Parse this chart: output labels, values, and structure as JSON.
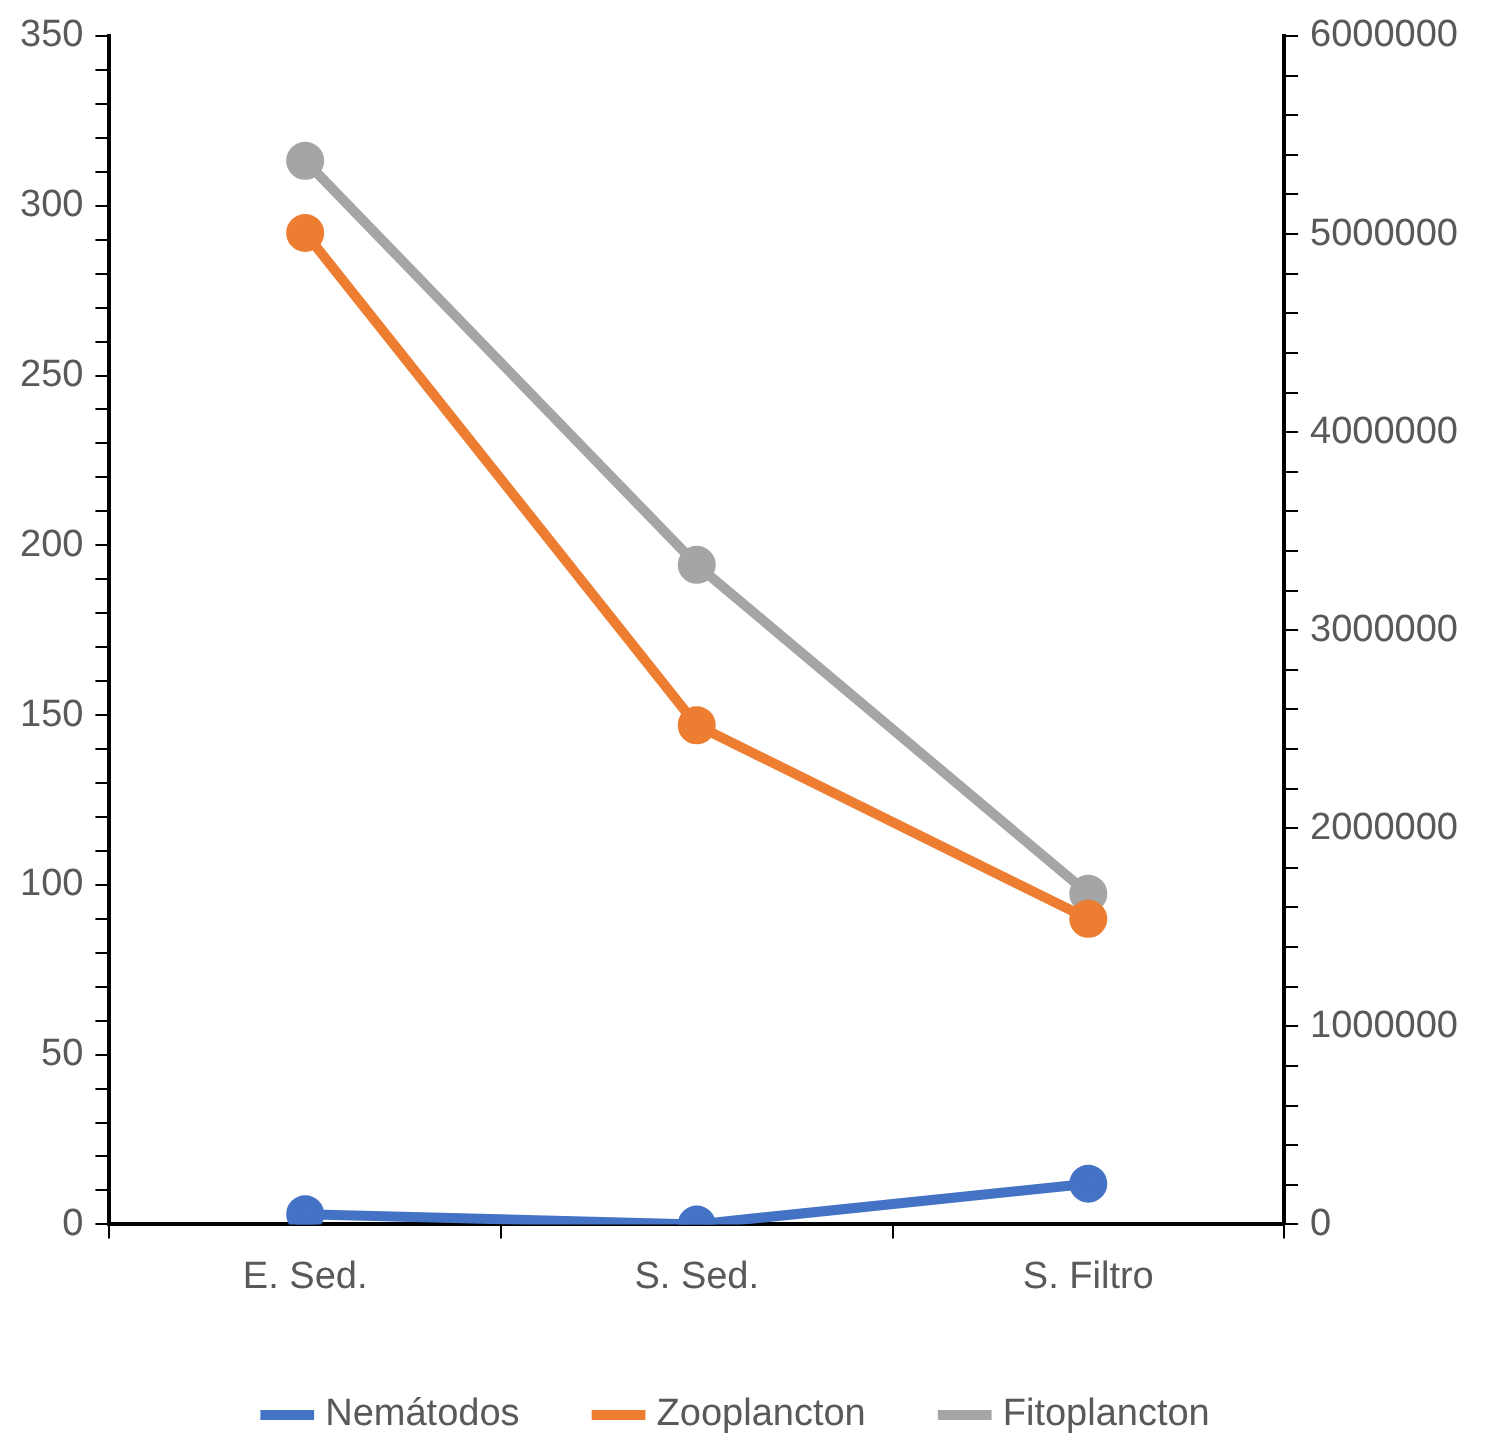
{
  "chart_data": {
    "type": "line",
    "categories": [
      "E. Sed.",
      "S. Sed.",
      "S. Filtro"
    ],
    "series": [
      {
        "name": "Nemátodos",
        "color": "#4472c4",
        "values": [
          3,
          0,
          12
        ]
      },
      {
        "name": "Zooplancton",
        "color": "#ed7d31",
        "values": [
          292,
          147,
          90
        ]
      },
      {
        "name": "Fitoplancton",
        "color": "#a5a5a5",
        "axis": "y2",
        "values": [
          5370000,
          3330000,
          1670000
        ]
      }
    ],
    "ylim": [
      0,
      350
    ],
    "yticks": [
      0,
      {
        "value": 10,
        "label": null
      },
      {
        "value": 20,
        "label": null
      },
      {
        "value": 30,
        "label": null
      },
      {
        "value": 40,
        "label": null
      },
      50,
      {
        "value": 60,
        "label": null
      },
      {
        "value": 70,
        "label": null
      },
      {
        "value": 80,
        "label": null
      },
      {
        "value": 90,
        "label": null
      },
      100,
      {
        "value": 110,
        "label": null
      },
      {
        "value": 120,
        "label": null
      },
      {
        "value": 130,
        "label": null
      },
      {
        "value": 140,
        "label": null
      },
      150,
      {
        "value": 160,
        "label": null
      },
      {
        "value": 170,
        "label": null
      },
      {
        "value": 180,
        "label": null
      },
      {
        "value": 190,
        "label": null
      },
      200,
      {
        "value": 210,
        "label": null
      },
      {
        "value": 220,
        "label": null
      },
      {
        "value": 230,
        "label": null
      },
      {
        "value": 240,
        "label": null
      },
      250,
      {
        "value": 260,
        "label": null
      },
      {
        "value": 270,
        "label": null
      },
      {
        "value": 280,
        "label": null
      },
      {
        "value": 290,
        "label": null
      },
      300,
      {
        "value": 310,
        "label": null
      },
      {
        "value": 320,
        "label": null
      },
      {
        "value": 330,
        "label": null
      },
      {
        "value": 340,
        "label": null
      },
      350
    ],
    "y2lim": [
      0,
      6000000
    ],
    "y2ticks": [
      0,
      {
        "value": 200000,
        "label": null
      },
      {
        "value": 400000,
        "label": null
      },
      {
        "value": 600000,
        "label": null
      },
      {
        "value": 800000,
        "label": null
      },
      1000000,
      {
        "value": 1200000,
        "label": null
      },
      {
        "value": 1400000,
        "label": null
      },
      {
        "value": 1600000,
        "label": null
      },
      {
        "value": 1800000,
        "label": null
      },
      2000000,
      {
        "value": 2200000,
        "label": null
      },
      {
        "value": 2400000,
        "label": null
      },
      {
        "value": 2600000,
        "label": null
      },
      {
        "value": 2800000,
        "label": null
      },
      3000000,
      {
        "value": 3200000,
        "label": null
      },
      {
        "value": 3400000,
        "label": null
      },
      {
        "value": 3600000,
        "label": null
      },
      {
        "value": 3800000,
        "label": null
      },
      4000000,
      {
        "value": 4200000,
        "label": null
      },
      {
        "value": 4400000,
        "label": null
      },
      {
        "value": 4600000,
        "label": null
      },
      {
        "value": 4800000,
        "label": null
      },
      5000000,
      {
        "value": 5200000,
        "label": null
      },
      {
        "value": 5400000,
        "label": null
      },
      {
        "value": 5600000,
        "label": null
      },
      {
        "value": 5800000,
        "label": null
      },
      6000000
    ],
    "grid": false,
    "legend": "bottom",
    "marker": "circle",
    "line_style": "solid"
  }
}
